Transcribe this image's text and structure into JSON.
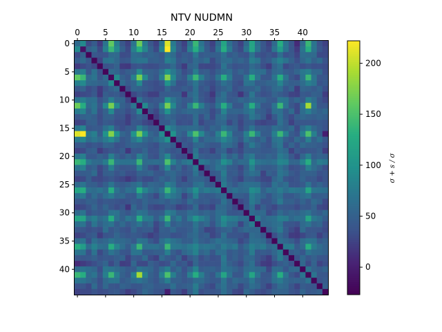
{
  "chart_data": {
    "type": "heatmap",
    "title": "NTV NUDMN",
    "size": 45,
    "x_ticks": [
      0,
      5,
      10,
      15,
      20,
      25,
      30,
      35,
      40
    ],
    "y_ticks": [
      0,
      5,
      10,
      15,
      20,
      25,
      30,
      35,
      40
    ],
    "x_axis_position": "top",
    "colormap": "viridis",
    "colorbar": {
      "label": "σ + s / σ",
      "range": [
        -27,
        222
      ],
      "ticks": [
        0,
        50,
        100,
        150,
        200
      ],
      "position": "right"
    },
    "value_rule": "matrix of pairwise values between 45 items; diagonal near minimum, recurring bright rows/columns at 1, 6, 11, 16, 21, 26, 31, 36, 41 with peak ≈ 222 at (16,1) and (1,16)",
    "row_means_estimate": [
      95,
      60,
      40,
      55,
      30,
      60,
      100,
      55,
      40,
      30,
      55,
      100,
      55,
      40,
      30,
      55,
      110,
      60,
      40,
      30,
      55,
      90,
      55,
      40,
      30,
      55,
      85,
      55,
      40,
      30,
      55,
      85,
      55,
      40,
      30,
      55,
      85,
      55,
      40,
      30,
      55,
      90,
      55,
      40,
      30
    ],
    "series": [
      {
        "row": 0,
        "values": [
          60,
          90,
          30,
          45,
          20,
          70,
          160,
          80,
          40,
          25,
          70,
          165,
          75,
          40,
          25,
          70,
          210,
          75,
          40,
          25,
          70,
          140,
          70,
          40,
          25,
          60,
          120,
          65,
          40,
          25,
          60,
          120,
          65,
          40,
          25,
          60,
          130,
          70,
          40,
          10,
          60,
          140,
          70,
          35,
          25
        ]
      },
      {
        "row": 1,
        "values": [
          90,
          -10,
          50,
          60,
          30,
          80,
          140,
          90,
          50,
          30,
          80,
          130,
          85,
          50,
          30,
          85,
          222,
          85,
          45,
          30,
          80,
          130,
          80,
          45,
          30,
          70,
          130,
          75,
          40,
          30,
          70,
          120,
          70,
          40,
          30,
          70,
          110,
          70,
          40,
          20,
          70,
          130,
          70,
          40,
          30
        ]
      },
      {
        "row": 6,
        "values": [
          160,
          140,
          60,
          70,
          40,
          60,
          -20,
          90,
          50,
          40,
          80,
          170,
          90,
          50,
          40,
          80,
          175,
          90,
          50,
          40,
          80,
          140,
          80,
          50,
          40,
          70,
          130,
          75,
          40,
          40,
          70,
          130,
          70,
          40,
          40,
          70,
          130,
          70,
          40,
          30,
          70,
          140,
          70,
          40,
          40
        ]
      },
      {
        "row": 11,
        "values": [
          165,
          130,
          60,
          70,
          40,
          90,
          170,
          90,
          50,
          40,
          70,
          -20,
          90,
          50,
          40,
          80,
          170,
          90,
          50,
          40,
          80,
          140,
          80,
          50,
          40,
          70,
          130,
          75,
          40,
          40,
          70,
          130,
          70,
          40,
          40,
          70,
          140,
          70,
          40,
          30,
          70,
          190,
          70,
          40,
          40
        ]
      },
      {
        "row": 16,
        "values": [
          210,
          222,
          70,
          80,
          45,
          100,
          175,
          100,
          55,
          45,
          100,
          170,
          100,
          55,
          45,
          90,
          -25,
          100,
          55,
          45,
          90,
          150,
          90,
          55,
          45,
          80,
          140,
          85,
          45,
          45,
          80,
          140,
          80,
          45,
          45,
          80,
          140,
          80,
          45,
          35,
          80,
          150,
          80,
          45,
          0
        ]
      },
      {
        "row": 41,
        "values": [
          140,
          130,
          60,
          70,
          40,
          80,
          140,
          80,
          50,
          40,
          80,
          190,
          80,
          50,
          40,
          80,
          150,
          80,
          50,
          40,
          80,
          130,
          80,
          50,
          40,
          70,
          120,
          70,
          40,
          40,
          70,
          120,
          70,
          40,
          40,
          70,
          130,
          70,
          40,
          30,
          70,
          -20,
          70,
          40,
          40
        ]
      }
    ]
  }
}
